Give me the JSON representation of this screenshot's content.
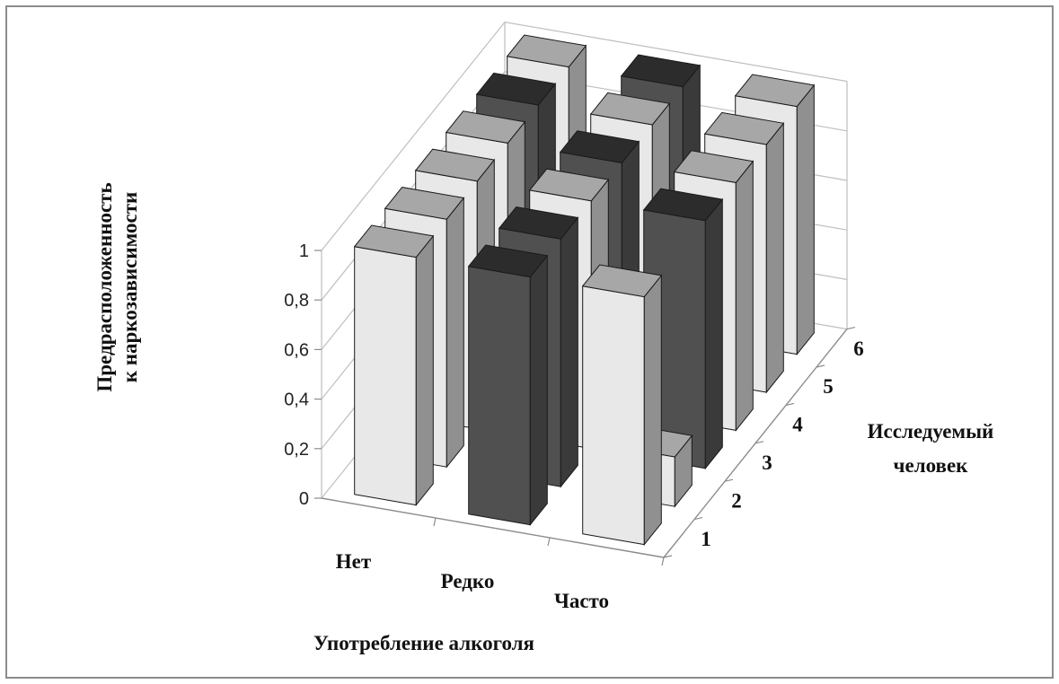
{
  "chart_data": {
    "type": "bar",
    "subtype": "3d-column",
    "title": "",
    "xlabel": "Употребление  алкоголя",
    "ylabel": [
      "Предрасположенность",
      "к наркозависимости"
    ],
    "zlabel": [
      "Исследуемый",
      "человек"
    ],
    "categories": [
      "Нет",
      "Редко",
      "Часто"
    ],
    "series_names": [
      "1",
      "2",
      "3",
      "4",
      "5",
      "6"
    ],
    "y_ticks": [
      "0",
      "0,2",
      "0,4",
      "0,6",
      "0,8",
      "1"
    ],
    "ylim": [
      0,
      1
    ],
    "grid": true,
    "values": [
      [
        1.0,
        1.0,
        1.0,
        1.0,
        1.0,
        1.0
      ],
      [
        1.0,
        1.0,
        1.0,
        1.0,
        1.0,
        1.0
      ],
      [
        1.0,
        0.2,
        1.0,
        1.0,
        1.0,
        1.0
      ]
    ],
    "colors": [
      "#e8e8e8",
      "#505050",
      "#e8e8e8",
      "#e8e8e8",
      "#505050",
      "#e8e8e8"
    ],
    "color_matrix": [
      [
        "#e8e8e8",
        "#e8e8e8",
        "#e8e8e8",
        "#e8e8e8",
        "#505050",
        "#e8e8e8"
      ],
      [
        "#505050",
        "#505050",
        "#e8e8e8",
        "#505050",
        "#e8e8e8",
        "#505050"
      ],
      [
        "#e8e8e8",
        "#e8e8e8",
        "#505050",
        "#e8e8e8",
        "#e8e8e8",
        "#e8e8e8"
      ]
    ]
  }
}
